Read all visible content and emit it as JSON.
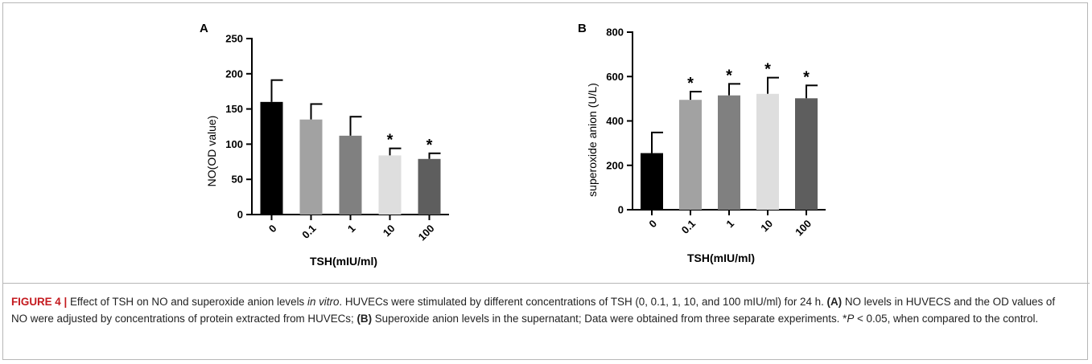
{
  "chart_data": [
    {
      "type": "bar",
      "panel": "A",
      "categories": [
        "0",
        "0.1",
        "1",
        "10",
        "100"
      ],
      "values": [
        160,
        135,
        112,
        84,
        79
      ],
      "errors": [
        31,
        22,
        27,
        10,
        8
      ],
      "significance": [
        "",
        "",
        "",
        "*",
        "*"
      ],
      "colors": [
        "#000000",
        "#a2a2a2",
        "#808080",
        "#dedede",
        "#5e5e5e"
      ],
      "xlabel": "TSH(mIU/ml)",
      "ylabel": "NO(OD value)",
      "ylim": [
        0,
        250
      ],
      "yticks": [
        "0",
        "50",
        "100",
        "150",
        "200",
        "250"
      ],
      "grid": false
    },
    {
      "type": "bar",
      "panel": "B",
      "categories": [
        "0",
        "0.1",
        "1",
        "10",
        "100"
      ],
      "values": [
        255,
        495,
        515,
        522,
        502
      ],
      "errors": [
        93,
        37,
        52,
        73,
        58
      ],
      "significance": [
        "",
        "*",
        "*",
        "*",
        "*"
      ],
      "colors": [
        "#000000",
        "#a2a2a2",
        "#808080",
        "#dedede",
        "#5e5e5e"
      ],
      "xlabel": "TSH(mIU/ml)",
      "ylabel": "superoxide anion (U/L)",
      "ylim": [
        0,
        800
      ],
      "yticks": [
        "0",
        "200",
        "400",
        "600",
        "800"
      ],
      "grid": false
    }
  ],
  "caption": {
    "label": "FIGURE 4 |",
    "text_1": " Effect of TSH on NO and superoxide anion levels ",
    "text_italic": "in vitro",
    "text_2": ". HUVECs were stimulated by different concentrations of TSH (0, 0.1, 1, 10, and 100 mIU/ml) for 24 h. ",
    "a_ref": "(A)",
    "text_3": " NO levels in HUVECS and the OD values of NO were adjusted by concentrations of protein extracted from HUVECs; ",
    "b_ref": "(B)",
    "text_4": " Superoxide anion levels in the supernatant; Data were obtained from three separate experiments. *",
    "p_symbol": "P",
    "text_5": " < 0.05, when compared to the control."
  }
}
